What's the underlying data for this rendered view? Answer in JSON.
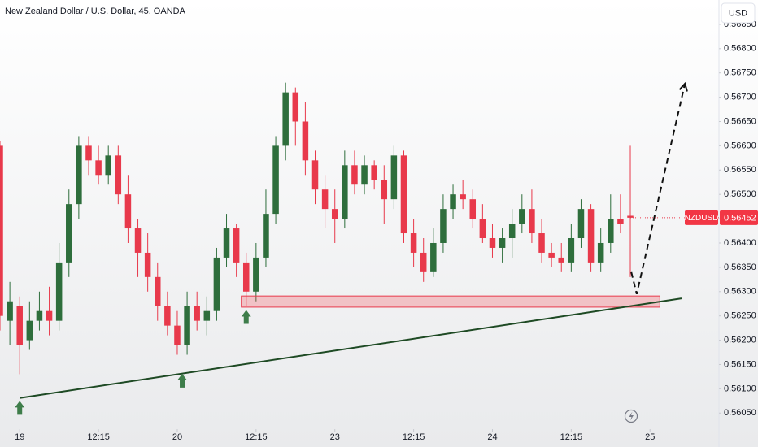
{
  "chart_data": {
    "type": "candlestick",
    "title": "New Zealand Dollar / U.S. Dollar, 45, OANDA",
    "currency": "USD",
    "symbol": "NZDUSD",
    "last_price": 0.56452,
    "up_color": "#2e6e3c",
    "down_color": "#e8394b",
    "x": [
      -4,
      -2,
      0,
      2,
      4,
      6,
      8,
      10,
      12,
      14,
      16,
      18,
      20,
      22,
      24,
      26,
      28,
      30,
      32,
      34,
      36,
      38,
      40,
      42,
      44,
      46,
      48,
      50,
      52,
      54,
      56,
      58,
      60,
      62,
      64,
      66,
      68,
      70,
      72,
      74,
      76,
      78,
      80,
      82,
      84,
      86,
      88,
      90,
      92,
      94,
      96,
      98,
      100,
      102,
      104,
      106,
      108,
      110,
      112,
      114,
      116,
      118,
      120,
      122,
      124
    ],
    "open": [
      0.566,
      0.5624,
      0.5627,
      0.562,
      0.5624,
      0.5626,
      0.5624,
      0.5636,
      0.5648,
      0.566,
      0.5657,
      0.5654,
      0.5658,
      0.565,
      0.5643,
      0.5638,
      0.5633,
      0.5627,
      0.5623,
      0.5619,
      0.5627,
      0.5624,
      0.5626,
      0.5637,
      0.5643,
      0.5636,
      0.563,
      0.5637,
      0.5646,
      0.566,
      0.5671,
      0.5665,
      0.5657,
      0.5651,
      0.5647,
      0.5645,
      0.5656,
      0.5652,
      0.5656,
      0.5653,
      0.5649,
      0.5658,
      0.5642,
      0.5638,
      0.5634,
      0.564,
      0.5647,
      0.565,
      0.5649,
      0.5645,
      0.5641,
      0.5639,
      0.5641,
      0.5644,
      0.5647,
      0.5642,
      0.5638,
      0.5637,
      0.5636,
      0.5641,
      0.5647,
      0.5636,
      0.564,
      0.5645,
      0.56456
    ],
    "high": [
      0.5661,
      0.5632,
      0.5629,
      0.5628,
      0.563,
      0.5631,
      0.564,
      0.5651,
      0.5662,
      0.5662,
      0.566,
      0.566,
      0.566,
      0.5654,
      0.5645,
      0.5642,
      0.5636,
      0.563,
      0.5626,
      0.563,
      0.563,
      0.5629,
      0.5639,
      0.5646,
      0.5644,
      0.5638,
      0.564,
      0.5651,
      0.5662,
      0.5673,
      0.5672,
      0.5669,
      0.5659,
      0.5654,
      0.5651,
      0.5659,
      0.5659,
      0.5658,
      0.5657,
      0.5656,
      0.566,
      0.5659,
      0.5645,
      0.5641,
      0.5643,
      0.565,
      0.5652,
      0.5653,
      0.5651,
      0.5648,
      0.5644,
      0.5643,
      0.5647,
      0.565,
      0.5651,
      0.5645,
      0.564,
      0.564,
      0.5644,
      0.5649,
      0.5648,
      0.5643,
      0.565,
      0.565,
      0.566
    ],
    "low": [
      0.5622,
      0.5619,
      0.5613,
      0.5618,
      0.5622,
      0.5621,
      0.5622,
      0.5633,
      0.5645,
      0.5654,
      0.5652,
      0.5652,
      0.5648,
      0.564,
      0.5633,
      0.563,
      0.5624,
      0.5621,
      0.5617,
      0.5617,
      0.5622,
      0.5621,
      0.5624,
      0.5635,
      0.5633,
      0.5627,
      0.5628,
      0.5635,
      0.5644,
      0.5657,
      0.566,
      0.5654,
      0.5648,
      0.5643,
      0.564,
      0.5643,
      0.565,
      0.565,
      0.5651,
      0.5644,
      0.5647,
      0.564,
      0.5635,
      0.5632,
      0.5633,
      0.5638,
      0.5645,
      0.5647,
      0.5643,
      0.564,
      0.5637,
      0.5636,
      0.5637,
      0.5642,
      0.564,
      0.5636,
      0.5635,
      0.5634,
      0.5634,
      0.5639,
      0.5634,
      0.5634,
      0.5638,
      0.5642,
      0.5633
    ],
    "close": [
      0.5625,
      0.5628,
      0.5619,
      0.5624,
      0.5626,
      0.5624,
      0.5636,
      0.5648,
      0.566,
      0.5657,
      0.5654,
      0.5658,
      0.565,
      0.5643,
      0.5638,
      0.5633,
      0.5627,
      0.5623,
      0.5619,
      0.5627,
      0.5624,
      0.5626,
      0.5637,
      0.5643,
      0.5636,
      0.563,
      0.5637,
      0.5646,
      0.566,
      0.5671,
      0.5665,
      0.5657,
      0.5651,
      0.5647,
      0.5645,
      0.5656,
      0.5652,
      0.5656,
      0.5653,
      0.5649,
      0.5658,
      0.5642,
      0.5638,
      0.5634,
      0.564,
      0.5647,
      0.565,
      0.5649,
      0.5645,
      0.5641,
      0.5639,
      0.5641,
      0.5644,
      0.5647,
      0.5642,
      0.5638,
      0.5637,
      0.5636,
      0.5641,
      0.5647,
      0.5636,
      0.564,
      0.5645,
      0.5644,
      0.56452
    ],
    "xlim": [
      -4,
      142
    ],
    "ylim": [
      0.56017,
      0.569
    ],
    "xticks": [
      {
        "value": 0,
        "label": "19"
      },
      {
        "value": 16,
        "label": "12:15"
      },
      {
        "value": 32,
        "label": "20"
      },
      {
        "value": 48,
        "label": "12:15"
      },
      {
        "value": 64,
        "label": "23"
      },
      {
        "value": 80,
        "label": "12:15"
      },
      {
        "value": 96,
        "label": "24"
      },
      {
        "value": 112,
        "label": "12:15"
      },
      {
        "value": 128,
        "label": "25"
      }
    ],
    "yticks": [
      {
        "value": 0.5605,
        "label": "0.56050"
      },
      {
        "value": 0.561,
        "label": "0.56100"
      },
      {
        "value": 0.5615,
        "label": "0.56150"
      },
      {
        "value": 0.562,
        "label": "0.56200"
      },
      {
        "value": 0.5625,
        "label": "0.56250"
      },
      {
        "value": 0.563,
        "label": "0.56300"
      },
      {
        "value": 0.5635,
        "label": "0.56350"
      },
      {
        "value": 0.564,
        "label": "0.56400"
      },
      {
        "value": 0.5645,
        "label": "0.56450"
      },
      {
        "value": 0.565,
        "label": "0.56500"
      },
      {
        "value": 0.5655,
        "label": "0.56550"
      },
      {
        "value": 0.566,
        "label": "0.56600"
      },
      {
        "value": 0.5665,
        "label": "0.56650"
      },
      {
        "value": 0.567,
        "label": "0.56700"
      },
      {
        "value": 0.5675,
        "label": "0.56750"
      },
      {
        "value": 0.568,
        "label": "0.56800"
      },
      {
        "value": 0.5685,
        "label": "0.56850"
      }
    ],
    "trendline": {
      "x": [
        0,
        134.4
      ],
      "y": [
        0.56081,
        0.56286
      ]
    },
    "zone": {
      "x": [
        45,
        130
      ],
      "y": [
        0.56268,
        0.56291
      ]
    },
    "arrows": {
      "x": [
        0,
        33,
        46
      ],
      "y": [
        0.56075,
        0.56131,
        0.56262
      ]
    },
    "projection": {
      "x": [
        124.2,
        125.3,
        135.1
      ],
      "y": [
        0.5634,
        0.56295,
        0.56728
      ]
    }
  }
}
